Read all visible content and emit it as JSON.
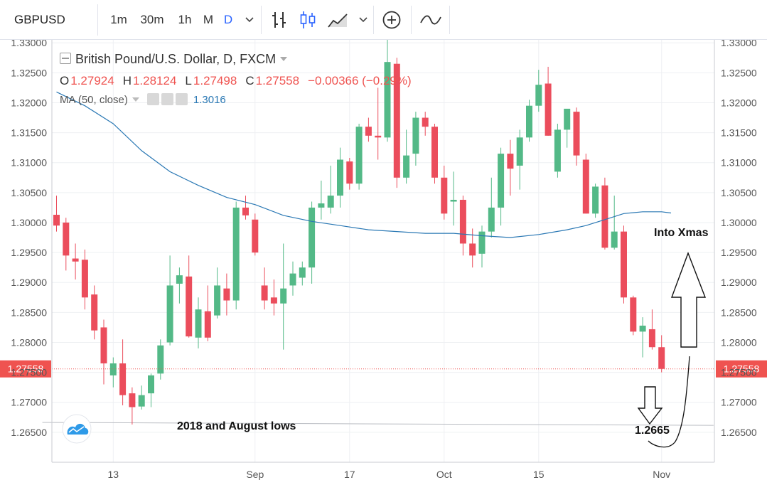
{
  "toolbar": {
    "symbol": "GBPUSD",
    "intervals": [
      "1m",
      "30m",
      "1h",
      "M",
      "D"
    ],
    "active_interval": "D",
    "icons": [
      "chevron-down-icon",
      "bar-style-icon",
      "candle-style-icon",
      "area-style-icon",
      "chevron-down-icon",
      "add-indicator-icon",
      "compare-icon"
    ]
  },
  "legend": {
    "title": "British Pound/U.S. Dollar, D, FXCM",
    "open_label": "O",
    "open": "1.27924",
    "high_label": "H",
    "high": "1.28124",
    "low_label": "L",
    "low": "1.27498",
    "close_label": "C",
    "close": "1.27558",
    "change": "−0.00366 (−0.29%)",
    "ma_label": "MA (50, close)",
    "ma_value": "1.3016"
  },
  "colors": {
    "up": "#53b987",
    "down": "#eb4d5c",
    "ma": "#2a78b4",
    "price_label": "#ef5350",
    "grid": "#eef0f3",
    "axis_text": "#555555"
  },
  "chart_data": {
    "type": "candlestick",
    "ylim": [
      1.26,
      1.3305
    ],
    "y_ticks": [
      "1.33000",
      "1.32500",
      "1.32000",
      "1.31500",
      "1.31000",
      "1.30500",
      "1.30000",
      "1.29500",
      "1.29000",
      "1.28500",
      "1.28000",
      "1.27500",
      "1.27000",
      "1.26500"
    ],
    "y_tick_values": [
      1.33,
      1.325,
      1.32,
      1.315,
      1.31,
      1.305,
      1.3,
      1.295,
      1.29,
      1.285,
      1.28,
      1.275,
      1.27,
      1.265
    ],
    "x_ticks": [
      "13",
      "Sep",
      "17",
      "Oct",
      "15",
      "Nov"
    ],
    "x_tick_positions": [
      6,
      21,
      31,
      41,
      51,
      64
    ],
    "last_price": 1.27558,
    "last_price_label": "1.27558",
    "candles": [
      {
        "o": 1.3013,
        "h": 1.3045,
        "l": 1.2985,
        "c": 1.2995
      },
      {
        "o": 1.3,
        "h": 1.3008,
        "l": 1.292,
        "c": 1.2945
      },
      {
        "o": 1.294,
        "h": 1.2965,
        "l": 1.2905,
        "c": 1.2935
      },
      {
        "o": 1.2938,
        "h": 1.2955,
        "l": 1.2855,
        "c": 1.2875
      },
      {
        "o": 1.288,
        "h": 1.2895,
        "l": 1.2805,
        "c": 1.282
      },
      {
        "o": 1.2825,
        "h": 1.2838,
        "l": 1.273,
        "c": 1.2765
      },
      {
        "o": 1.2745,
        "h": 1.2775,
        "l": 1.2725,
        "c": 1.2765
      },
      {
        "o": 1.2765,
        "h": 1.2805,
        "l": 1.2695,
        "c": 1.2712
      },
      {
        "o": 1.2715,
        "h": 1.2725,
        "l": 1.2663,
        "c": 1.2692
      },
      {
        "o": 1.2693,
        "h": 1.2728,
        "l": 1.2688,
        "c": 1.2712
      },
      {
        "o": 1.2715,
        "h": 1.2748,
        "l": 1.2692,
        "c": 1.2745
      },
      {
        "o": 1.2748,
        "h": 1.2805,
        "l": 1.2738,
        "c": 1.2795
      },
      {
        "o": 1.28,
        "h": 1.2945,
        "l": 1.2795,
        "c": 1.2895
      },
      {
        "o": 1.2898,
        "h": 1.2925,
        "l": 1.2865,
        "c": 1.2912
      },
      {
        "o": 1.291,
        "h": 1.2945,
        "l": 1.2808,
        "c": 1.281
      },
      {
        "o": 1.2808,
        "h": 1.2875,
        "l": 1.279,
        "c": 1.2855
      },
      {
        "o": 1.2852,
        "h": 1.2895,
        "l": 1.2802,
        "c": 1.2808
      },
      {
        "o": 1.2845,
        "h": 1.2925,
        "l": 1.284,
        "c": 1.2895
      },
      {
        "o": 1.289,
        "h": 1.2915,
        "l": 1.2845,
        "c": 1.287
      },
      {
        "o": 1.287,
        "h": 1.3035,
        "l": 1.2855,
        "c": 1.3025
      },
      {
        "o": 1.3025,
        "h": 1.3045,
        "l": 1.3005,
        "c": 1.3012
      },
      {
        "o": 1.3005,
        "h": 1.3015,
        "l": 1.2945,
        "c": 1.295
      },
      {
        "o": 1.2895,
        "h": 1.2925,
        "l": 1.2855,
        "c": 1.287
      },
      {
        "o": 1.2875,
        "h": 1.2905,
        "l": 1.2845,
        "c": 1.2865
      },
      {
        "o": 1.2865,
        "h": 1.2965,
        "l": 1.2788,
        "c": 1.289
      },
      {
        "o": 1.2895,
        "h": 1.2935,
        "l": 1.2878,
        "c": 1.2915
      },
      {
        "o": 1.2908,
        "h": 1.2935,
        "l": 1.2895,
        "c": 1.2925
      },
      {
        "o": 1.2925,
        "h": 1.3035,
        "l": 1.2898,
        "c": 1.3025
      },
      {
        "o": 1.3025,
        "h": 1.307,
        "l": 1.3005,
        "c": 1.3032
      },
      {
        "o": 1.3025,
        "h": 1.3095,
        "l": 1.3015,
        "c": 1.3045
      },
      {
        "o": 1.3045,
        "h": 1.3125,
        "l": 1.3025,
        "c": 1.3105
      },
      {
        "o": 1.3102,
        "h": 1.3108,
        "l": 1.3055,
        "c": 1.3065
      },
      {
        "o": 1.3065,
        "h": 1.3165,
        "l": 1.3055,
        "c": 1.316
      },
      {
        "o": 1.316,
        "h": 1.3175,
        "l": 1.3135,
        "c": 1.3145
      },
      {
        "o": 1.3145,
        "h": 1.3225,
        "l": 1.3105,
        "c": 1.3142
      },
      {
        "o": 1.3142,
        "h": 1.3305,
        "l": 1.3135,
        "c": 1.3268
      },
      {
        "o": 1.3265,
        "h": 1.3275,
        "l": 1.3058,
        "c": 1.3075
      },
      {
        "o": 1.3075,
        "h": 1.3155,
        "l": 1.3065,
        "c": 1.3112
      },
      {
        "o": 1.3115,
        "h": 1.3185,
        "l": 1.3095,
        "c": 1.3175
      },
      {
        "o": 1.3175,
        "h": 1.3185,
        "l": 1.3145,
        "c": 1.316
      },
      {
        "o": 1.316,
        "h": 1.3165,
        "l": 1.3065,
        "c": 1.3075
      },
      {
        "o": 1.3075,
        "h": 1.3095,
        "l": 1.3005,
        "c": 1.3015
      },
      {
        "o": 1.3035,
        "h": 1.3085,
        "l": 1.2995,
        "c": 1.3038
      },
      {
        "o": 1.3038,
        "h": 1.3045,
        "l": 1.2945,
        "c": 1.2965
      },
      {
        "o": 1.2965,
        "h": 1.299,
        "l": 1.2925,
        "c": 1.2945
      },
      {
        "o": 1.2948,
        "h": 1.2995,
        "l": 1.2925,
        "c": 1.2985
      },
      {
        "o": 1.2985,
        "h": 1.3075,
        "l": 1.2975,
        "c": 1.3025
      },
      {
        "o": 1.3025,
        "h": 1.3125,
        "l": 1.2995,
        "c": 1.3115
      },
      {
        "o": 1.3115,
        "h": 1.3138,
        "l": 1.3045,
        "c": 1.309
      },
      {
        "o": 1.3095,
        "h": 1.3155,
        "l": 1.3055,
        "c": 1.3142
      },
      {
        "o": 1.3142,
        "h": 1.3205,
        "l": 1.3135,
        "c": 1.3195
      },
      {
        "o": 1.3195,
        "h": 1.3255,
        "l": 1.3185,
        "c": 1.323
      },
      {
        "o": 1.3232,
        "h": 1.326,
        "l": 1.3145,
        "c": 1.3145
      },
      {
        "o": 1.3085,
        "h": 1.3165,
        "l": 1.3075,
        "c": 1.3155
      },
      {
        "o": 1.3155,
        "h": 1.3185,
        "l": 1.3125,
        "c": 1.319
      },
      {
        "o": 1.3185,
        "h": 1.3192,
        "l": 1.3095,
        "c": 1.3112
      },
      {
        "o": 1.3105,
        "h": 1.3115,
        "l": 1.3015,
        "c": 1.3015
      },
      {
        "o": 1.3015,
        "h": 1.3065,
        "l": 1.3008,
        "c": 1.306
      },
      {
        "o": 1.3062,
        "h": 1.3075,
        "l": 1.2955,
        "c": 1.2958
      },
      {
        "o": 1.2958,
        "h": 1.3045,
        "l": 1.2955,
        "c": 1.2985
      },
      {
        "o": 1.2985,
        "h": 1.2995,
        "l": 1.2865,
        "c": 1.2875
      },
      {
        "o": 1.2875,
        "h": 1.2878,
        "l": 1.2812,
        "c": 1.2818
      },
      {
        "o": 1.2818,
        "h": 1.2842,
        "l": 1.2775,
        "c": 1.2828
      },
      {
        "o": 1.2822,
        "h": 1.2855,
        "l": 1.2788,
        "c": 1.2792
      },
      {
        "o": 1.2792,
        "h": 1.2812,
        "l": 1.275,
        "c": 1.27558
      }
    ],
    "ma_series": {
      "name": "MA (50, close)",
      "x": [
        0,
        3,
        6,
        9,
        12,
        15,
        18,
        21,
        24,
        27,
        30,
        33,
        36,
        39,
        42,
        45,
        48,
        51,
        54,
        56,
        58,
        60,
        62,
        64,
        65
      ],
      "values": [
        1.3218,
        1.3195,
        1.3165,
        1.312,
        1.3085,
        1.3062,
        1.3042,
        1.303,
        1.3012,
        1.3002,
        1.2995,
        1.2988,
        1.2985,
        1.2982,
        1.2982,
        1.2978,
        1.2975,
        1.298,
        1.2988,
        1.2995,
        1.3005,
        1.3015,
        1.3018,
        1.3018,
        1.3016
      ]
    },
    "support_line": {
      "label": "2018 and August lows",
      "start_x": -1.5,
      "start_y": 1.26665,
      "end_x": 69.5,
      "end_y": 1.26615
    },
    "annotations": [
      {
        "text": "Into Xmas",
        "x": 63,
        "y": 1.2998
      },
      {
        "text": "1.2665",
        "x": 59.8,
        "y": 1.2665
      }
    ]
  }
}
